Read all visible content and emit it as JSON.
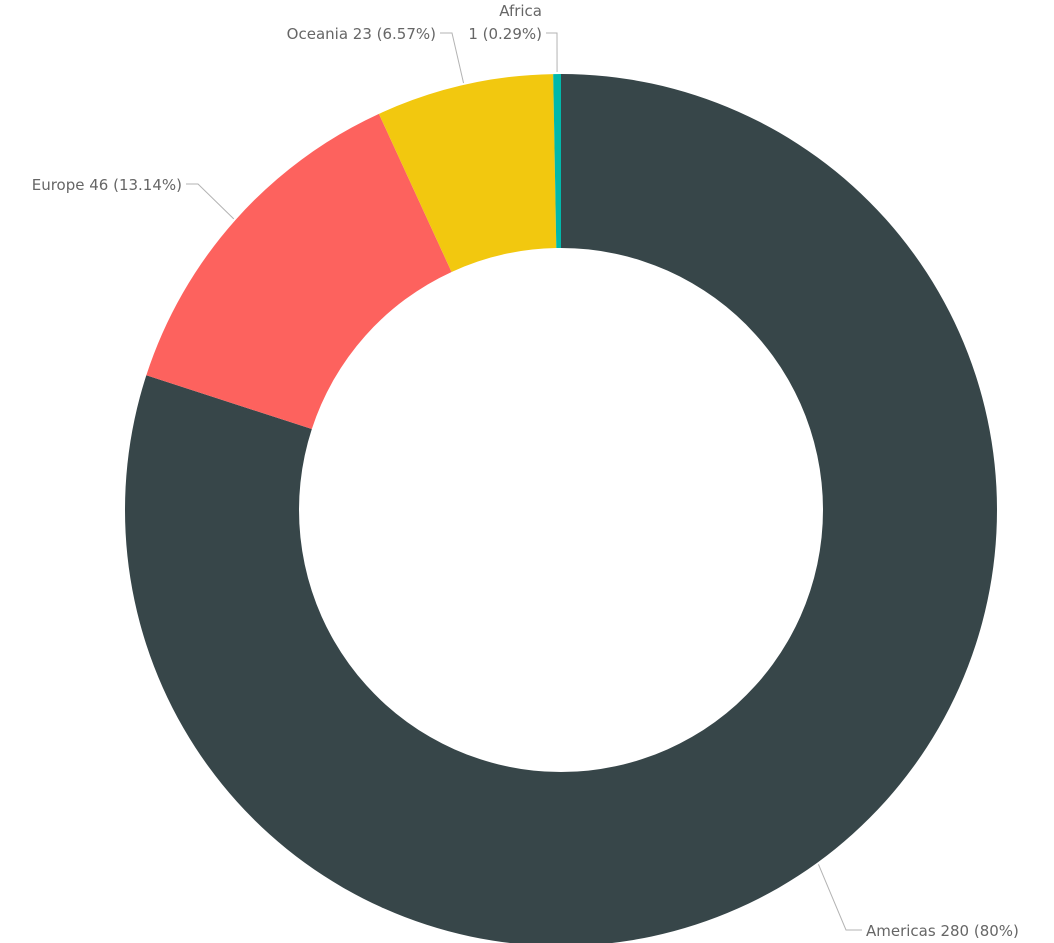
{
  "chart_data": {
    "type": "pie",
    "variant": "donut",
    "categories": [
      "Americas",
      "Europe",
      "Oceania",
      "Africa"
    ],
    "values": [
      280,
      46,
      23,
      1
    ],
    "percent_labels": [
      "80%",
      "13.14%",
      "6.57%",
      "0.29%"
    ],
    "colors": [
      "#374649",
      "#FD625E",
      "#F2C80F",
      "#01B8AA"
    ],
    "slices": [
      {
        "name": "Americas",
        "value": 280,
        "value_text": "280",
        "percent": "80%",
        "color": "#374649"
      },
      {
        "name": "Europe",
        "value": 46,
        "value_text": "46",
        "percent": "13.14%",
        "color": "#FD625E"
      },
      {
        "name": "Oceania",
        "value": 23,
        "value_text": "23",
        "percent": "6.57%",
        "color": "#F2C80F"
      },
      {
        "name": "Africa",
        "value": 1,
        "value_text": "1",
        "percent": "0.29%",
        "color": "#01B8AA"
      }
    ],
    "title": "",
    "legend": "none",
    "data_labels": "outside"
  }
}
